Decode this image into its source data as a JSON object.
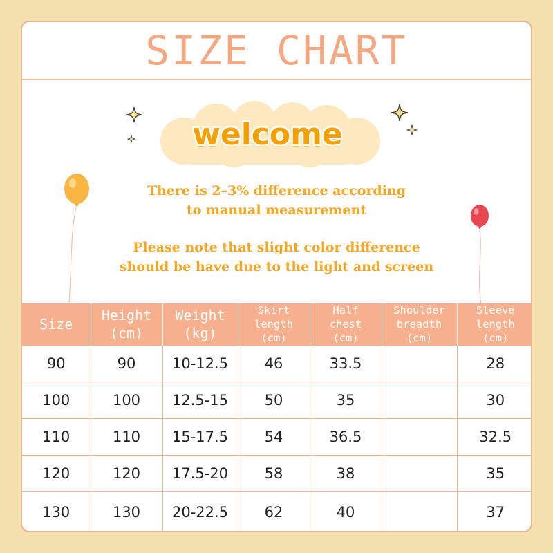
{
  "title": "SIZE CHART",
  "welcome": "welcome",
  "notes": [
    "There is 2–3% difference according",
    "to manual measurement",
    "Please note that slight color difference",
    "should be have due to the light and screen"
  ],
  "table": {
    "headers": [
      [
        "Size"
      ],
      [
        "Height",
        "(cm)"
      ],
      [
        "Weight",
        "(kg)"
      ],
      [
        "Skirt",
        "length",
        "(cm)"
      ],
      [
        "Half",
        "chest",
        "(cm)"
      ],
      [
        "Shoulder",
        "breadth",
        "(cm)"
      ],
      [
        "Sleeve",
        "length",
        "(cm)"
      ]
    ],
    "rows": [
      [
        "90",
        "90",
        "10-12.5",
        "46",
        "33.5",
        "",
        "28"
      ],
      [
        "100",
        "100",
        "12.5-15",
        "50",
        "35",
        "",
        "30"
      ],
      [
        "110",
        "110",
        "15-17.5",
        "54",
        "36.5",
        "",
        "32.5"
      ],
      [
        "120",
        "120",
        "17.5-20",
        "58",
        "38",
        "",
        "35"
      ],
      [
        "130",
        "130",
        "20-22.5",
        "62",
        "40",
        "",
        "37"
      ]
    ]
  },
  "colors": {
    "background": "#f3e0ad",
    "accent": "#f4a882",
    "header_fill": "#f6b08e",
    "welcome_text": "#f4a000",
    "note_text": "#f5a623",
    "cloud": "#fde8bf"
  },
  "decorations": [
    "sparkle-icon",
    "yellow-balloon-icon",
    "red-balloon-icon"
  ]
}
